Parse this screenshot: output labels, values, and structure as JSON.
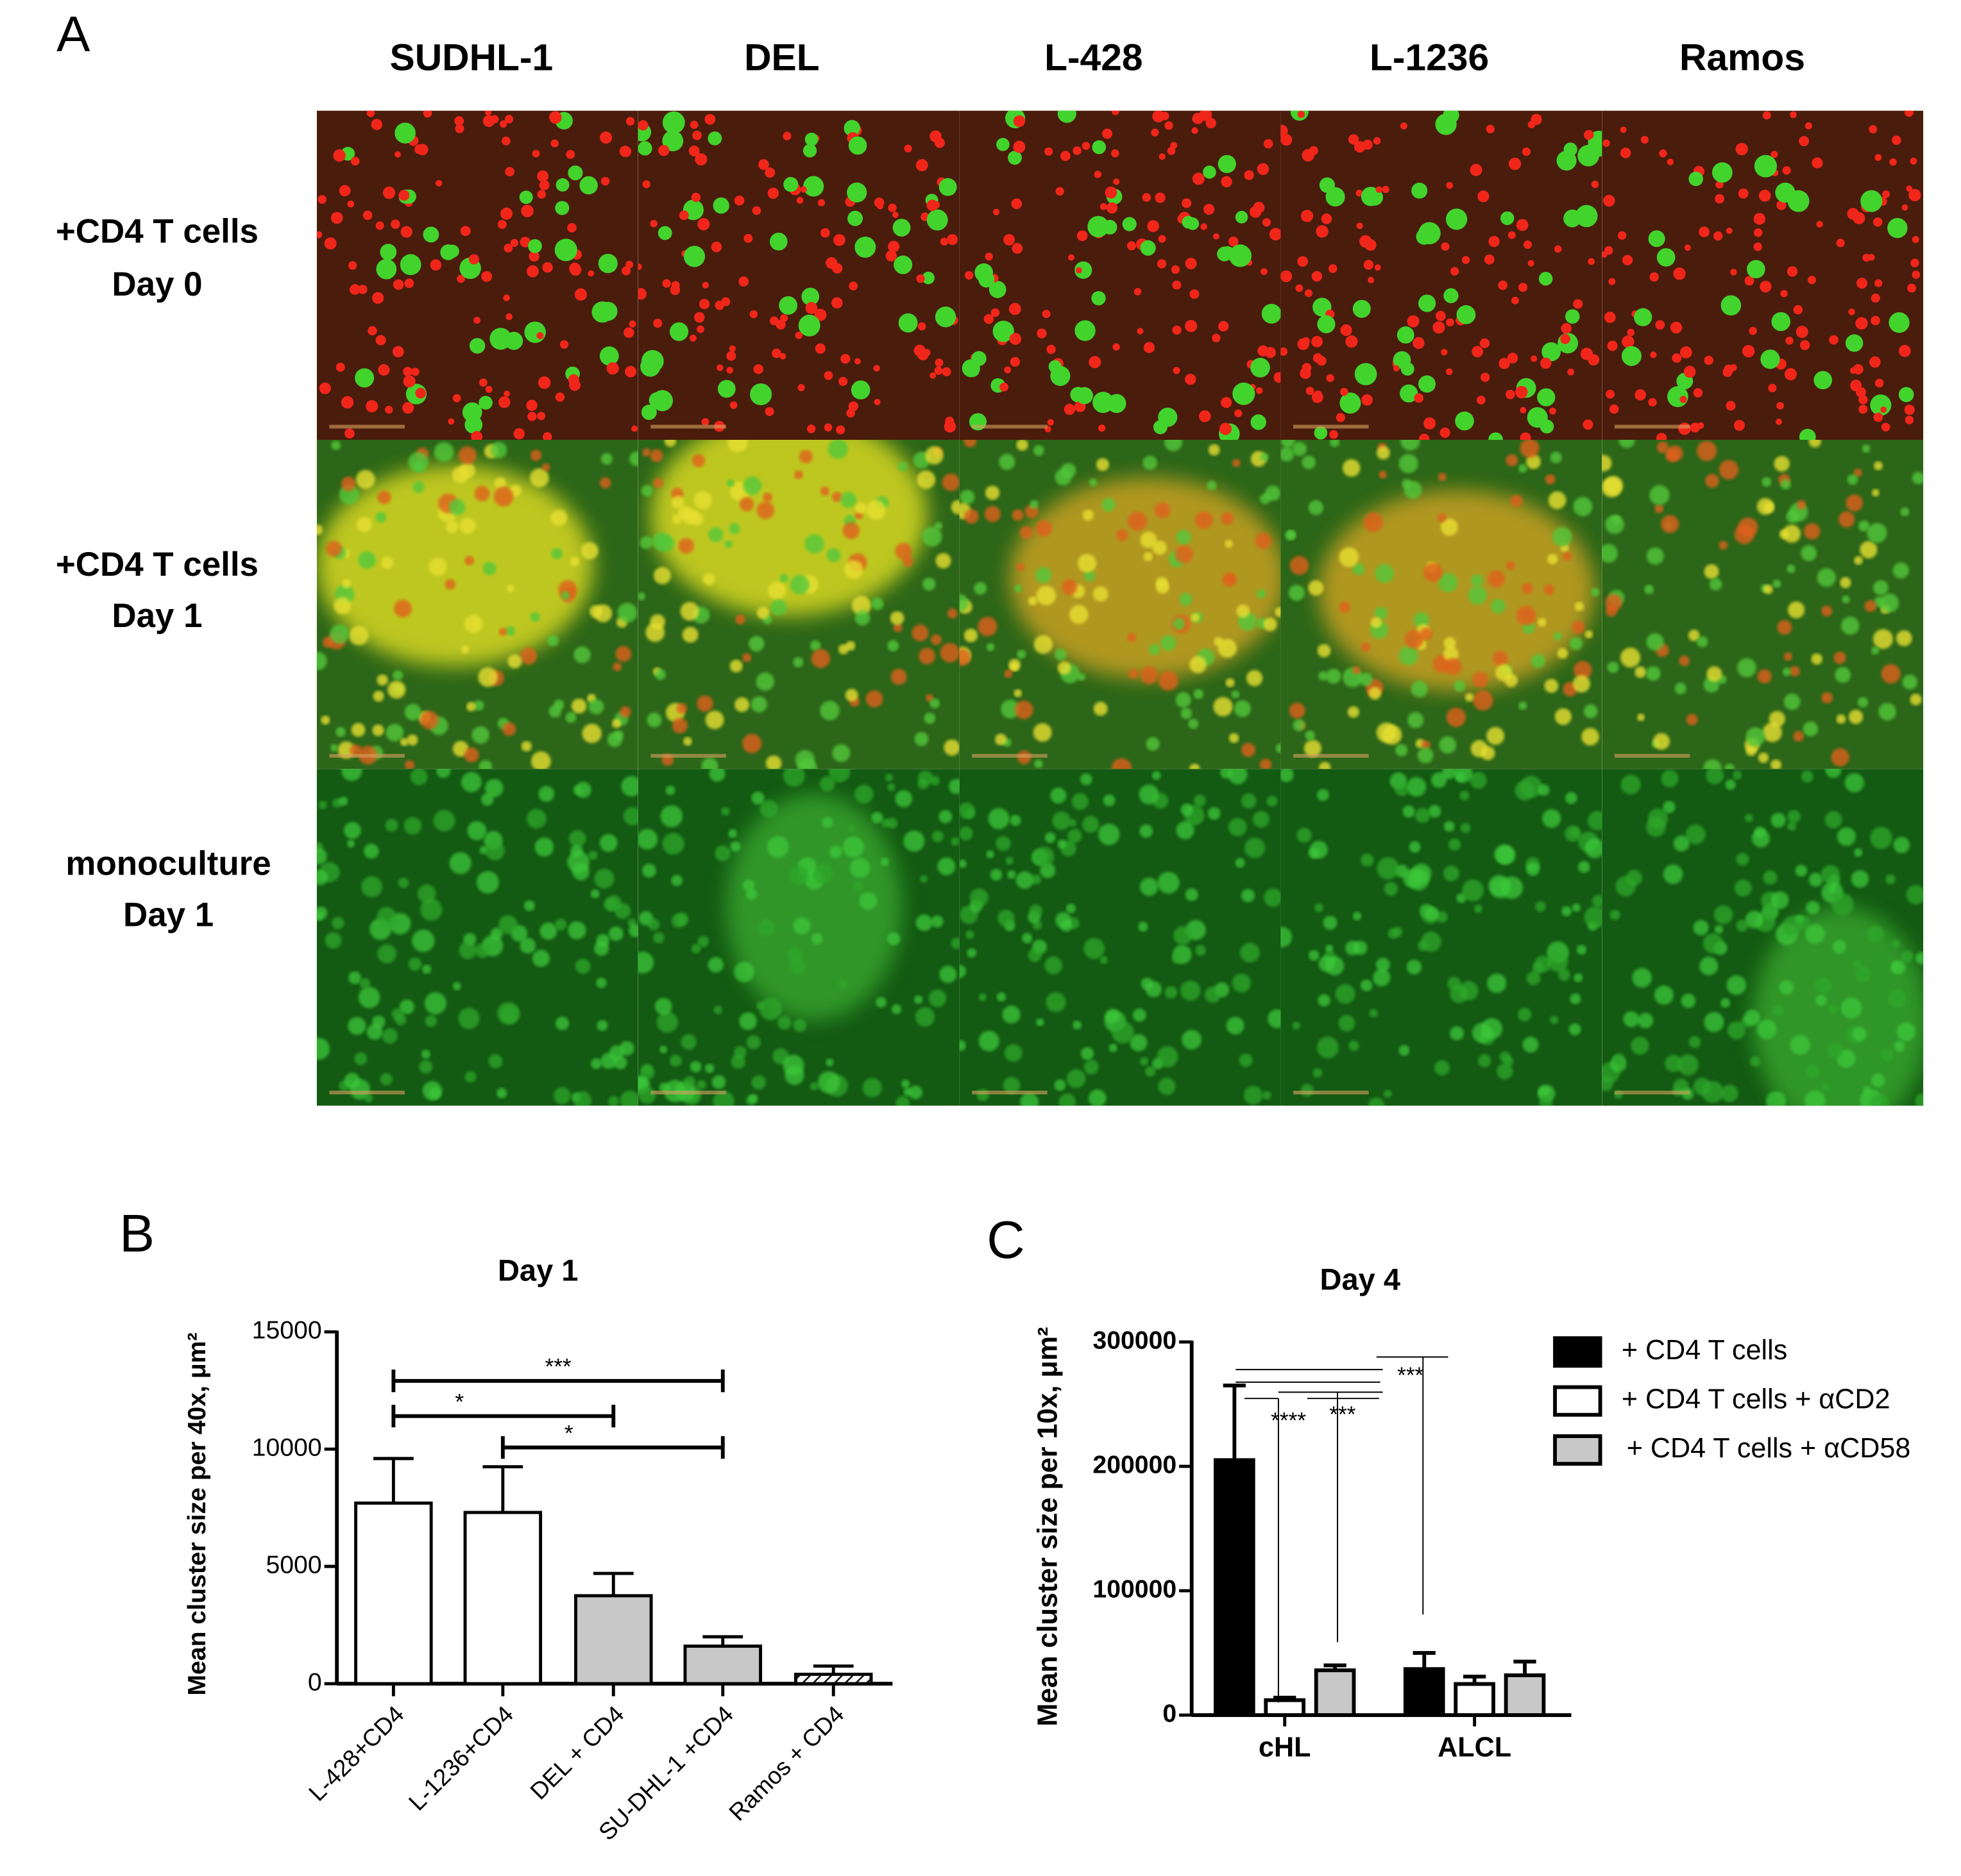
{
  "panel_a": {
    "label": "A",
    "columns": [
      "SUDHL-1",
      "DEL",
      "L-428",
      "L-1236",
      "Ramos"
    ],
    "rows": [
      [
        "+CD4 T cells",
        "Day 0"
      ],
      [
        "+CD4 T cells",
        "Day 1"
      ],
      [
        "monoculture",
        "Day 1"
      ]
    ]
  },
  "chart_data": [
    {
      "type": "bar",
      "panel_label": "B",
      "title": "Day 1",
      "y_label": "Mean cluster size per 40x, μm²",
      "categories": [
        "L-428+CD4",
        "L-1236+CD4",
        "DEL + CD4",
        "SU-DHL-1 +CD4",
        "Ramos + CD4"
      ],
      "values": [
        7700,
        7300,
        3750,
        1600,
        400
      ],
      "errors": [
        1900,
        1950,
        950,
        400,
        350
      ],
      "colors": [
        "#ffffff",
        "#ffffff",
        "#c8c8c8",
        "#c8c8c8",
        "#ffffff"
      ],
      "hatch": [
        false,
        false,
        false,
        false,
        true
      ],
      "ylim": [
        0,
        15000
      ],
      "yticks": [
        0,
        5000,
        10000,
        15000
      ],
      "annotations": [
        "***",
        "*",
        "*"
      ]
    },
    {
      "type": "grouped_bar",
      "panel_label": "C",
      "title": "Day 4",
      "y_label": "Mean cluster size per 10x, μm²",
      "categories": [
        "cHL",
        "ALCL"
      ],
      "series": [
        {
          "name": "+ CD4 T cells",
          "color": "#000000",
          "values": [
            205000,
            37000
          ],
          "errors": [
            60000,
            13000
          ]
        },
        {
          "name": "+ CD4 T cells + αCD2",
          "color": "#ffffff",
          "values": [
            12000,
            25000
          ],
          "errors": [
            2000,
            6000
          ]
        },
        {
          "name": "+ CD4 T cells + αCD58",
          "color": "#c8c8c8",
          "values": [
            36000,
            32000
          ],
          "errors": [
            4000,
            11000
          ]
        }
      ],
      "ylim": [
        0,
        300000
      ],
      "yticks": [
        0,
        100000,
        200000,
        300000
      ],
      "legend": "right",
      "annotations": [
        "****",
        "***",
        "***"
      ]
    }
  ]
}
